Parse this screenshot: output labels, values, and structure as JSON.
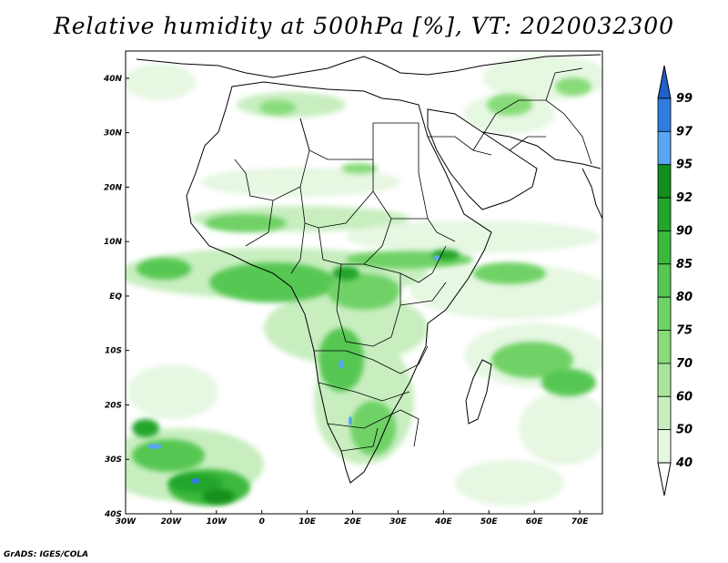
{
  "title": "Relative humidity at 500hPa [%], VT: 2020032300",
  "footer": "GrADS: IGES/COLA",
  "colors": {
    "land_outline": "#000000",
    "rh_40": "#e6f7e2",
    "rh_50": "#c8eec0",
    "rh_60": "#a8e59c",
    "rh_70": "#88db7a",
    "rh_75": "#6fd266",
    "rh_80": "#56c752",
    "rh_85": "#3cb93c",
    "rh_90": "#23a52a",
    "rh_92": "#128f1c",
    "rh_95": "#5aa6f0",
    "rh_97": "#2f7de0",
    "rh_99": "#1f5fc8"
  },
  "chart_data": {
    "type": "heatmap",
    "title": "Relative humidity at 500hPa [%], VT: 2020032300",
    "variable": "Relative humidity",
    "level": "500hPa",
    "units": "%",
    "valid_time": "2020032300",
    "x_ticks": [
      "30W",
      "20W",
      "10W",
      "0",
      "10E",
      "20E",
      "30E",
      "40E",
      "50E",
      "60E",
      "70E"
    ],
    "y_ticks": [
      "40N",
      "30N",
      "20N",
      "10N",
      "EQ",
      "10S",
      "20S",
      "30S",
      "40S"
    ],
    "lon_range": [
      -30,
      75
    ],
    "lat_range": [
      -40,
      45
    ],
    "colorbar_levels": [
      "99",
      "97",
      "95",
      "92",
      "90",
      "85",
      "80",
      "75",
      "70",
      "60",
      "50",
      "40"
    ],
    "colorbar_colors": [
      "#1f5fc8",
      "#2f7de0",
      "#5aa6f0",
      "#128f1c",
      "#23a52a",
      "#3cb93c",
      "#56c752",
      "#6fd266",
      "#88db7a",
      "#a8e59c",
      "#c8eec0",
      "#e6f7e2"
    ]
  }
}
